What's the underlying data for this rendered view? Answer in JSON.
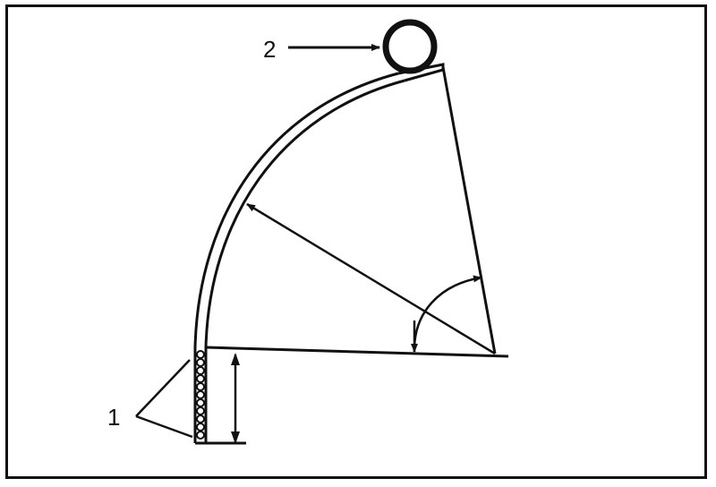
{
  "callouts": {
    "weld_seam": "1",
    "pipe_ring": "2"
  },
  "colors": {
    "line": "#111111",
    "background": "#ffffff"
  }
}
